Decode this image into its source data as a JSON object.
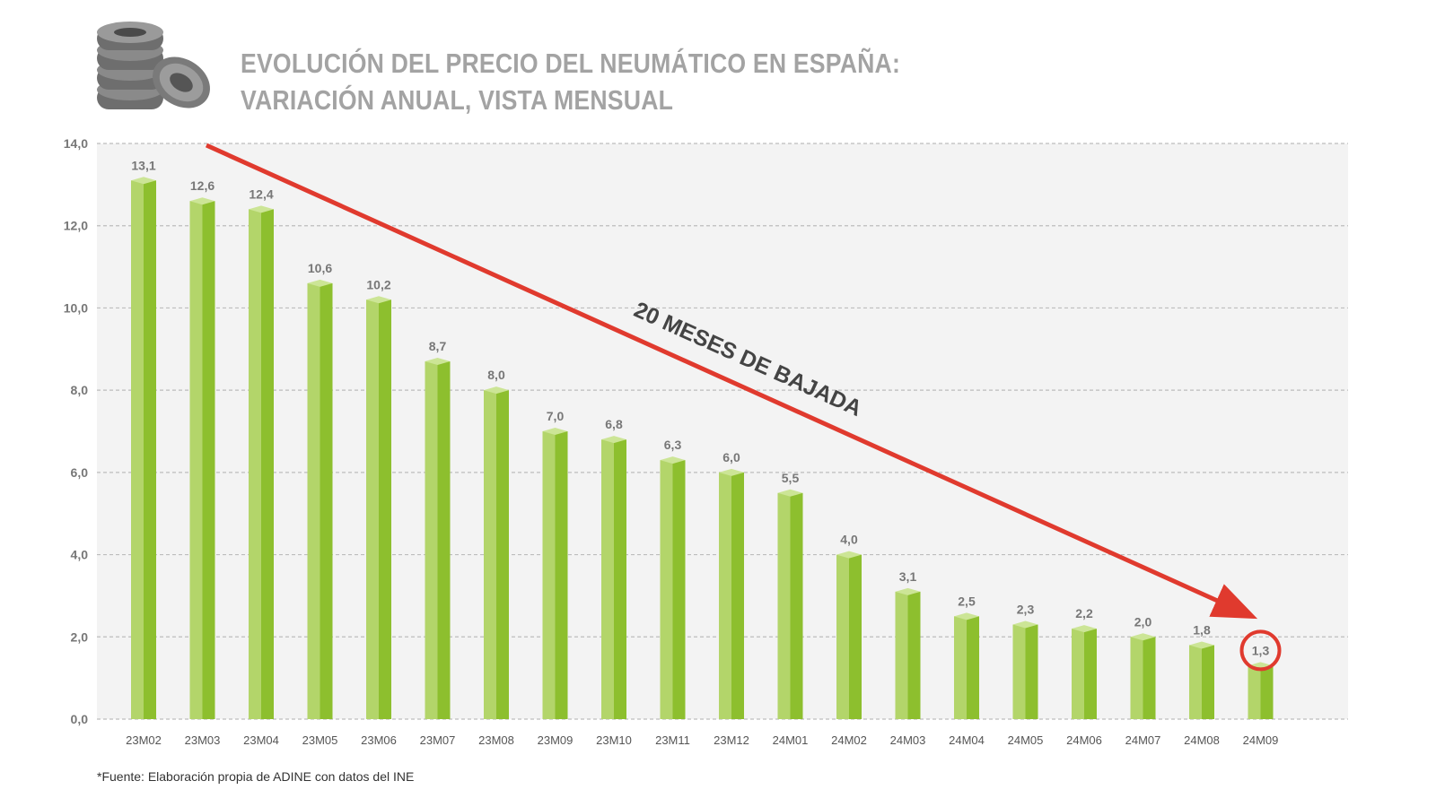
{
  "header": {
    "title_line1": "EVOLUCIÓN DEL PRECIO DEL NEUMÁTICO EN ESPAÑA:",
    "title_line2": "VARIACIÓN ANUAL, VISTA MENSUAL"
  },
  "logo": {
    "icon": "tire-stack-icon"
  },
  "annotation": {
    "arrow_label": "20 MESES DE BAJADA",
    "highlight_category": "24M09"
  },
  "footnote": "*Fuente: Elaboración propia de ADINE con datos del INE",
  "colors": {
    "bar_front": "#8dbf2e",
    "bar_side": "#b3d56a",
    "bar_top": "#cce596",
    "plot_bg": "#f3f3f3",
    "grid": "#bdbdbd",
    "arrow": "#e03a2e",
    "label": "#777777",
    "title": "#a3a3a3"
  },
  "chart_data": {
    "type": "bar",
    "categories": [
      "23M02",
      "23M03",
      "23M04",
      "23M05",
      "23M06",
      "23M07",
      "23M08",
      "23M09",
      "23M10",
      "23M11",
      "23M12",
      "24M01",
      "24M02",
      "24M03",
      "24M04",
      "24M05",
      "24M06",
      "24M07",
      "24M08",
      "24M09"
    ],
    "values": [
      13.1,
      12.6,
      12.4,
      10.6,
      10.2,
      8.7,
      8.0,
      7.0,
      6.8,
      6.3,
      6.0,
      5.5,
      4.0,
      3.1,
      2.5,
      2.3,
      2.2,
      2.0,
      1.8,
      1.3
    ],
    "data_labels": [
      "13,1",
      "12,6",
      "12,4",
      "10,6",
      "10,2",
      "8,7",
      "8,0",
      "7,0",
      "6,8",
      "6,3",
      "6,0",
      "5,5",
      "4,0",
      "3,1",
      "2,5",
      "2,3",
      "2,2",
      "2,0",
      "1,8",
      "1,3"
    ],
    "y_ticks": [
      "0,0",
      "2,0",
      "4,0",
      "6,0",
      "8,0",
      "10,0",
      "12,0",
      "14,0"
    ],
    "ylim": [
      0,
      14
    ],
    "grid": true,
    "xlabel": "",
    "ylabel": ""
  }
}
